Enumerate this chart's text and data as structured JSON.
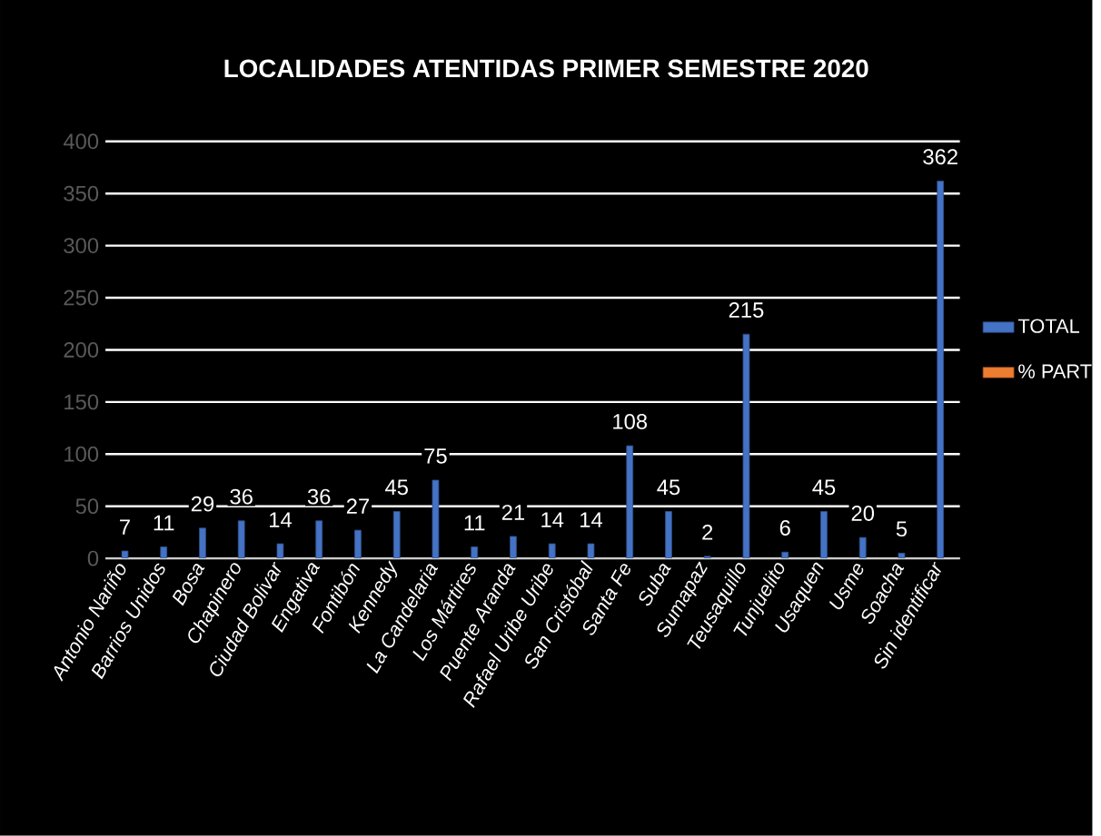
{
  "chart_data": {
    "type": "bar",
    "title": "LOCALIDADES ATENTIDAS PRIMER SEMESTRE 2020",
    "categories": [
      "Antonio Nariño",
      "Barrios Unidos",
      "Bosa",
      "Chapinero",
      "Ciudad Bolivar",
      "Engativa",
      "Fontibón",
      "Kennedy",
      "La Candelaria",
      "Los Mártires",
      "Puente Aranda",
      "Rafael Uribe Uribe",
      "San Cristóbal",
      "Santa Fe",
      "Suba",
      "Sumapaz",
      "Teusaquillo",
      "Tunjuelito",
      "Usaquen",
      "Usme",
      "Soacha",
      "Sin identificar"
    ],
    "series": [
      {
        "name": "TOTAL",
        "color": "#4472c4",
        "values": [
          7,
          11,
          29,
          36,
          14,
          36,
          27,
          45,
          75,
          11,
          21,
          14,
          14,
          108,
          45,
          2,
          215,
          6,
          45,
          20,
          5,
          362
        ]
      },
      {
        "name": "% PART",
        "color": "#ed7d31",
        "values": [
          null,
          null,
          null,
          null,
          null,
          null,
          null,
          null,
          null,
          null,
          null,
          null,
          null,
          null,
          null,
          null,
          null,
          null,
          null,
          null,
          null,
          null
        ]
      }
    ],
    "ylim": [
      0,
      400
    ],
    "yticks": [
      0,
      50,
      100,
      150,
      200,
      250,
      300,
      350,
      400
    ],
    "grid": "y",
    "legend": "right",
    "data_labels": true
  }
}
